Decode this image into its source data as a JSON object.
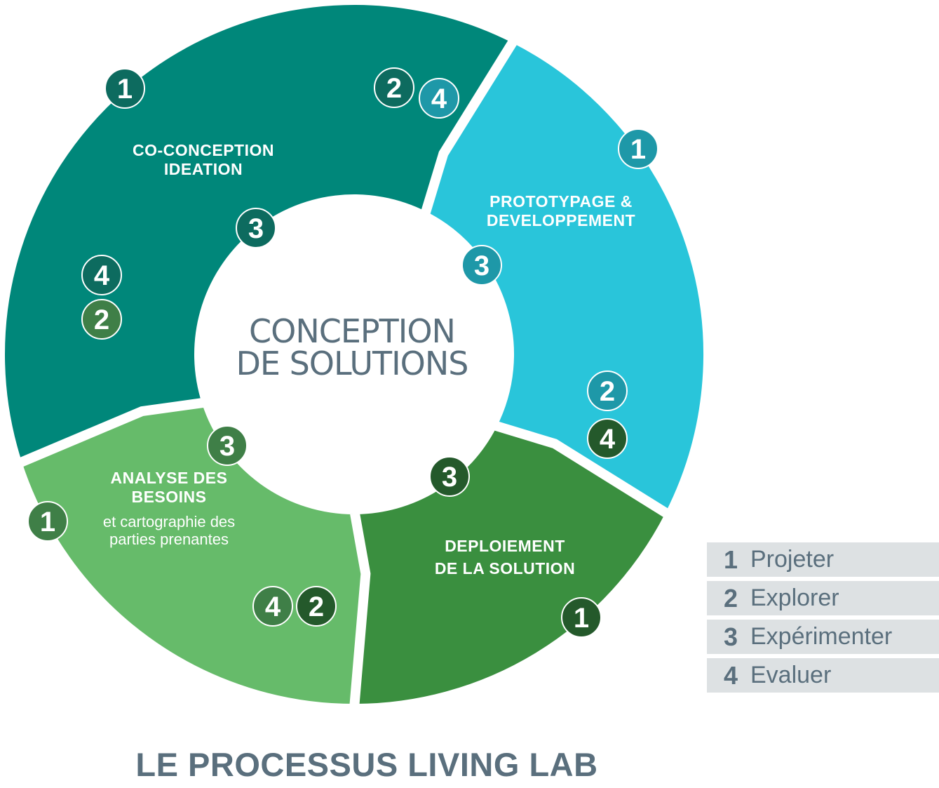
{
  "center": {
    "line1": "CONCEPTION",
    "line2": "DE SOLUTIONS"
  },
  "segments": [
    {
      "title_lines": [
        "CO-CONCEPTION",
        "IDEATION"
      ],
      "sub_lines": [],
      "color": "#00877a"
    },
    {
      "title_lines": [
        "PROTOTYPAGE &",
        "DEVELOPPEMENT"
      ],
      "sub_lines": [],
      "color": "#29c5da"
    },
    {
      "title_lines": [
        "DEPLOIEMENT",
        "DE LA SOLUTION"
      ],
      "sub_lines": [],
      "color": "#3a8f3f"
    },
    {
      "title_lines": [
        "ANALYSE DES",
        "BESOINS"
      ],
      "sub_lines": [
        "et cartographie des",
        "parties prenantes"
      ],
      "color": "#66bb6a"
    }
  ],
  "badges": [
    {
      "label": "1",
      "color": "#0d6b5f"
    },
    {
      "label": "2",
      "color": "#0d6b5f"
    },
    {
      "label": "3",
      "color": "#0d6b5f"
    },
    {
      "label": "4",
      "color": "#0d6b5f"
    },
    {
      "label": "1",
      "color": "#1e98a8"
    },
    {
      "label": "2",
      "color": "#1e98a8"
    },
    {
      "label": "3",
      "color": "#1e98a8"
    },
    {
      "label": "4",
      "color": "#1e98a8"
    },
    {
      "label": "1",
      "color": "#24592b"
    },
    {
      "label": "2",
      "color": "#24592b"
    },
    {
      "label": "3",
      "color": "#24592b"
    },
    {
      "label": "4",
      "color": "#24592b"
    },
    {
      "label": "1",
      "color": "#3f7f47"
    },
    {
      "label": "2",
      "color": "#3f7f47"
    },
    {
      "label": "3",
      "color": "#3f7f47"
    },
    {
      "label": "4",
      "color": "#3f7f47"
    }
  ],
  "legend": [
    {
      "num": "1",
      "label": "Projeter"
    },
    {
      "num": "2",
      "label": "Explorer"
    },
    {
      "num": "3",
      "label": "Expérimenter"
    },
    {
      "num": "4",
      "label": "Evaluer"
    }
  ],
  "title": "LE PROCESSUS LIVING LAB"
}
